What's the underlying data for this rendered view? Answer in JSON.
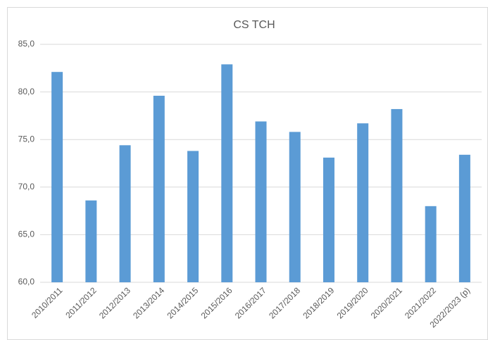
{
  "chart_data": {
    "type": "bar",
    "title": "CS TCH",
    "categories": [
      "2010/2011",
      "2011/2012",
      "2012/2013",
      "2013/2014",
      "2014/2015",
      "2015/2016",
      "2016/2017",
      "2017/2018",
      "2018/2019",
      "2019/2020",
      "2020/2021",
      "2021/2022",
      "2022/2023 (p)"
    ],
    "values": [
      82.1,
      68.6,
      74.4,
      79.6,
      73.8,
      82.9,
      76.9,
      75.8,
      73.1,
      76.7,
      78.2,
      68.0,
      73.4
    ],
    "color": "#5b9bd5",
    "ylim": [
      60,
      85
    ],
    "yticks": [
      {
        "value": 60,
        "label": "60,0"
      },
      {
        "value": 65,
        "label": "65,0"
      },
      {
        "value": 70,
        "label": "70,0"
      },
      {
        "value": 75,
        "label": "75,0"
      },
      {
        "value": 80,
        "label": "80,0"
      },
      {
        "value": 85,
        "label": "85,0"
      }
    ],
    "grid": true
  }
}
